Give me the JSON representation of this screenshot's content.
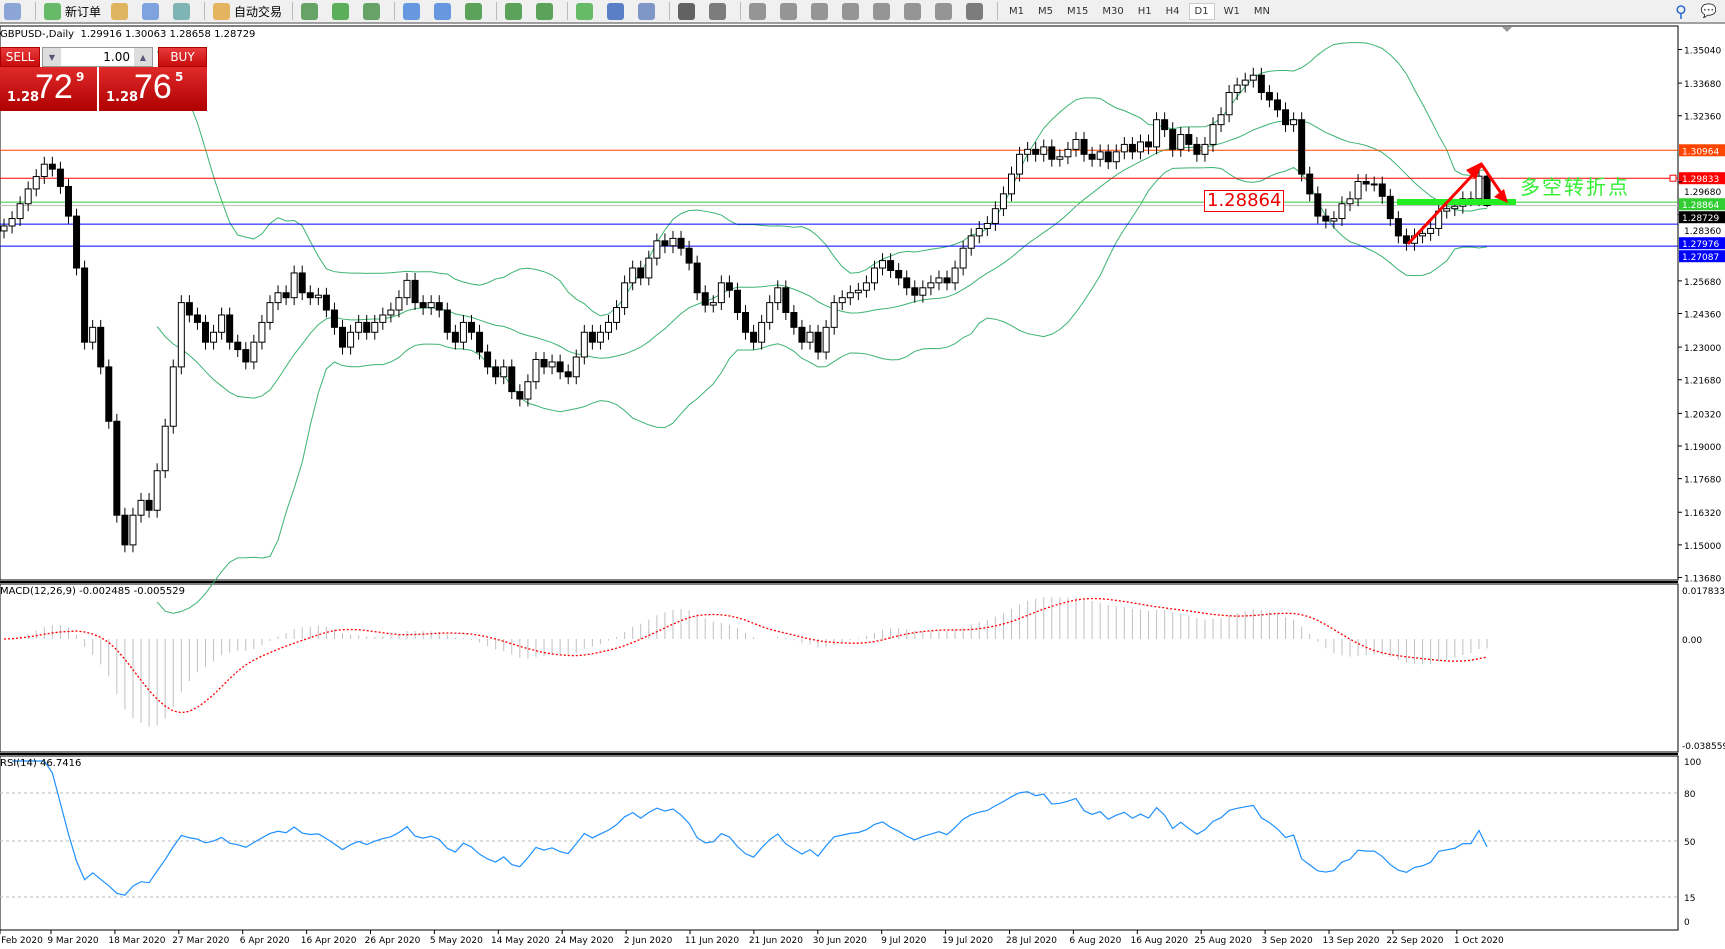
{
  "toolbar": {
    "items": [
      {
        "icon": "chart-window-icon",
        "color": "#6a8ccf"
      },
      {
        "icon": "new-order-icon",
        "label": "新订单",
        "color": "#3aa83a"
      },
      {
        "icon": "market-watch-icon",
        "color": "#d8a030"
      },
      {
        "icon": "navigator-icon",
        "color": "#5a8ad8"
      },
      {
        "icon": "signals-icon",
        "color": "#5aa0a0"
      },
      {
        "icon": "auto-trading-icon",
        "label": "自动交易",
        "color": "#e0a030"
      },
      {
        "icon": "bar-chart-icon",
        "color": "#3a8a3a"
      },
      {
        "icon": "candlestick-icon",
        "color": "#2a9a2a"
      },
      {
        "icon": "line-chart-icon",
        "color": "#3a8a3a"
      },
      {
        "icon": "zoom-in-icon",
        "color": "#3a7ad8"
      },
      {
        "icon": "zoom-out-icon",
        "color": "#3a7ad8"
      },
      {
        "icon": "tile-windows-icon",
        "color": "#2a8a2a"
      },
      {
        "icon": "auto-scroll-icon",
        "color": "#2a8a2a"
      },
      {
        "icon": "chart-shift-icon",
        "color": "#2a8a2a"
      },
      {
        "icon": "indicators-icon",
        "color": "#3aa83a"
      },
      {
        "icon": "periods-icon",
        "color": "#2a5ab8"
      },
      {
        "icon": "templates-icon",
        "color": "#5a7ab8"
      },
      {
        "icon": "cursor-icon",
        "color": "#333"
      },
      {
        "icon": "crosshair-icon",
        "color": "#555"
      },
      {
        "icon": "vertical-line-icon",
        "color": "#777"
      },
      {
        "icon": "horizontal-line-icon",
        "color": "#777"
      },
      {
        "icon": "trendline-icon",
        "color": "#777"
      },
      {
        "icon": "equidistant-channel-icon",
        "color": "#777"
      },
      {
        "icon": "fibonacci-icon",
        "color": "#777"
      },
      {
        "icon": "text-icon",
        "color": "#777"
      },
      {
        "icon": "text-label-icon",
        "color": "#777"
      },
      {
        "icon": "arrows-icon",
        "color": "#555"
      }
    ],
    "timeframes": [
      "M1",
      "M5",
      "M15",
      "M30",
      "H1",
      "H4",
      "D1",
      "W1",
      "MN"
    ],
    "active_timeframe": "D1",
    "search_icon": "search-icon",
    "chat_icon": "chat-icon"
  },
  "header": {
    "symbol": "GBPUSD-,Daily",
    "ohlc": "1.29916 1.30063 1.28658 1.28729"
  },
  "trade_panel": {
    "sell_label": "SELL",
    "buy_label": "BUY",
    "lot": "1.00",
    "sell": {
      "prefix": "1.28",
      "big": "72",
      "sup": "9"
    },
    "buy": {
      "prefix": "1.28",
      "big": "76",
      "sup": "5"
    }
  },
  "annotations": {
    "price_box": "1.28864",
    "text": "多空转折点",
    "arrow_color": "#ff0000",
    "bar_color": "#22ee22"
  },
  "macd": {
    "title": "MACD(12,26,9) -0.002485 -0.005529",
    "axis": [
      "0.017833",
      "0.00",
      "-0.038559"
    ],
    "max": 0.017833,
    "min": -0.038559
  },
  "rsi": {
    "title": "RSI(14) 46.7416",
    "axis": [
      "100",
      "80",
      "50",
      "15",
      "0"
    ],
    "levels": [
      80,
      50,
      15
    ]
  },
  "chart_data": {
    "type": "candlestick",
    "symbol": "GBPUSD-",
    "timeframe": "Daily",
    "ylim": [
      1.1368,
      1.3504
    ],
    "price_ticks": [
      "1.35040",
      "1.33680",
      "1.32360",
      "1.29680",
      "1.28360",
      "1.25680",
      "1.24360",
      "1.23000",
      "1.21680",
      "1.20320",
      "1.19000",
      "1.17680",
      "1.16320",
      "1.15000",
      "1.13680"
    ],
    "x_labels": [
      "Feb 2020",
      "9 Mar 2020",
      "18 Mar 2020",
      "27 Mar 2020",
      "6 Apr 2020",
      "16 Apr 2020",
      "26 Apr 2020",
      "5 May 2020",
      "14 May 2020",
      "24 May 2020",
      "2 Jun 2020",
      "11 Jun 2020",
      "21 Jun 2020",
      "30 Jun 2020",
      "9 Jul 2020",
      "19 Jul 2020",
      "28 Jul 2020",
      "6 Aug 2020",
      "16 Aug 2020",
      "25 Aug 2020",
      "3 Sep 2020",
      "13 Sep 2020",
      "22 Sep 2020",
      "1 Oct 2020"
    ],
    "close": [
      1.279,
      1.282,
      1.288,
      1.294,
      1.299,
      1.304,
      1.302,
      1.295,
      1.283,
      1.262,
      1.232,
      1.238,
      1.222,
      1.2,
      1.162,
      1.15,
      1.162,
      1.168,
      1.164,
      1.18,
      1.198,
      1.222,
      1.248,
      1.243,
      1.24,
      1.232,
      1.236,
      1.243,
      1.232,
      1.229,
      1.224,
      1.232,
      1.24,
      1.248,
      1.252,
      1.25,
      1.26,
      1.252,
      1.25,
      1.251,
      1.245,
      1.238,
      1.23,
      1.236,
      1.24,
      1.236,
      1.24,
      1.243,
      1.245,
      1.25,
      1.257,
      1.248,
      1.246,
      1.248,
      1.245,
      1.236,
      1.232,
      1.24,
      1.236,
      1.228,
      1.222,
      1.218,
      1.222,
      1.212,
      1.209,
      1.216,
      1.225,
      1.222,
      1.224,
      1.22,
      1.218,
      1.226,
      1.236,
      1.232,
      1.236,
      1.24,
      1.246,
      1.256,
      1.262,
      1.258,
      1.266,
      1.273,
      1.271,
      1.274,
      1.27,
      1.264,
      1.252,
      1.247,
      1.248,
      1.256,
      1.253,
      1.244,
      1.236,
      1.232,
      1.24,
      1.248,
      1.254,
      1.244,
      1.238,
      1.232,
      1.236,
      1.228,
      1.238,
      1.248,
      1.25,
      1.252,
      1.253,
      1.256,
      1.262,
      1.265,
      1.261,
      1.258,
      1.254,
      1.251,
      1.254,
      1.256,
      1.258,
      1.256,
      1.262,
      1.27,
      1.275,
      1.278,
      1.28,
      1.286,
      1.292,
      1.3,
      1.308,
      1.31,
      1.308,
      1.311,
      1.306,
      1.307,
      1.31,
      1.314,
      1.308,
      1.306,
      1.309,
      1.305,
      1.309,
      1.312,
      1.309,
      1.313,
      1.311,
      1.322,
      1.318,
      1.31,
      1.316,
      1.312,
      1.308,
      1.312,
      1.32,
      1.324,
      1.333,
      1.336,
      1.338,
      1.34,
      1.333,
      1.33,
      1.326,
      1.32,
      1.322,
      1.3,
      1.292,
      1.283,
      1.281,
      1.282,
      1.288,
      1.29,
      1.297,
      1.296,
      1.296,
      1.291,
      1.282,
      1.275,
      1.272,
      1.275,
      1.276,
      1.278,
      1.285,
      1.286,
      1.287,
      1.29,
      1.29,
      1.29916,
      1.28729
    ],
    "last_bar": {
      "open": 1.29916,
      "high": 1.30063,
      "low": 1.28658,
      "close": 1.28729
    },
    "levels": [
      {
        "price": 1.30964,
        "label": "1.30964",
        "color": "#ff4500",
        "text_color": "#ffffff"
      },
      {
        "price": 1.29833,
        "label": "1.29833",
        "color": "#ff0000",
        "text_color": "#ffffff"
      },
      {
        "price": 1.28864,
        "label": "1.28864",
        "color": "#32cd32",
        "text_color": "#ffffff"
      },
      {
        "price": 1.28729,
        "label": "1.28729",
        "color": "#000000",
        "line_color": "#c0c0c0",
        "text_color": "#ffffff"
      },
      {
        "price": 1.27976,
        "label": "1.27976",
        "color": "#0000ff",
        "text_color": "#ffffff"
      },
      {
        "price": 1.27087,
        "label": "1.27087",
        "color": "#0000ff",
        "text_color": "#ffffff"
      }
    ],
    "bollinger_color": "#3cb371",
    "macd_hist_color": "#c0c0c0",
    "macd_signal_color": "#ff0000",
    "rsi_color": "#1e90ff"
  }
}
